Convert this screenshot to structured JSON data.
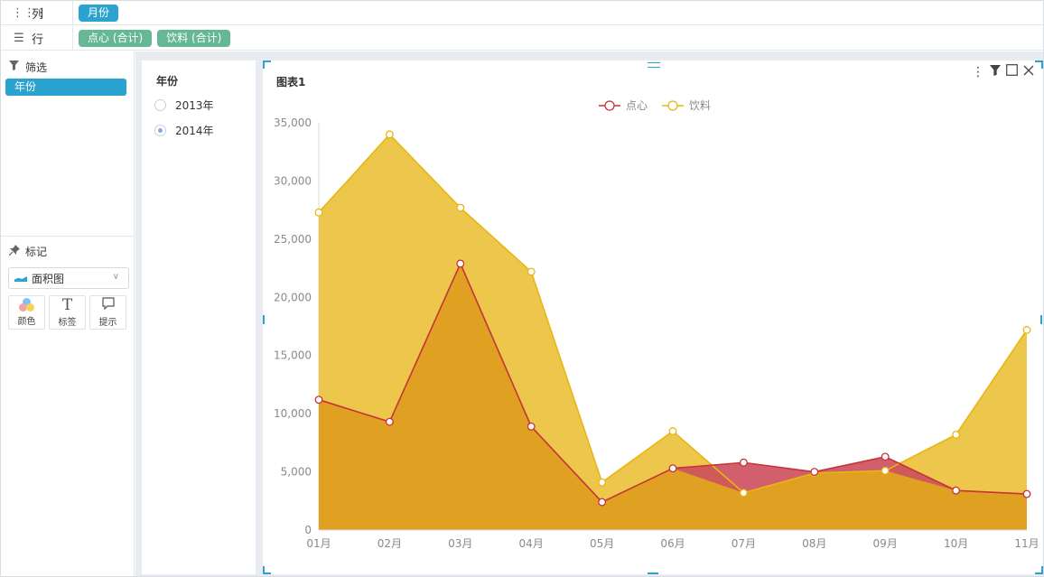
{
  "shelves": {
    "columns": {
      "label": "列",
      "icon": "columns-icon",
      "pills": [
        "月份"
      ]
    },
    "rows": {
      "label": "行",
      "icon": "list-icon",
      "pills": [
        "点心 (合计)",
        "饮料 (合计)"
      ]
    }
  },
  "left": {
    "filter_title": "筛选",
    "filter_pill": "年份",
    "marks_title": "标记",
    "mark_type": "面积图",
    "mark_buttons": [
      {
        "label": "颜色",
        "icon": "color-icon"
      },
      {
        "label": "标签",
        "icon": "text-T-icon"
      },
      {
        "label": "提示",
        "icon": "tooltip-icon"
      }
    ]
  },
  "year_filter": {
    "title": "年份",
    "options": [
      {
        "label": "2013年",
        "checked": false
      },
      {
        "label": "2014年",
        "checked": true
      }
    ]
  },
  "chart": {
    "title": "图表1",
    "colors": {
      "series1": "#c8323a",
      "series2": "#e8b612",
      "fill1": "#cc4e5c",
      "fill2": "#ebc441",
      "overlap": "#e0a021"
    }
  },
  "chart_data": {
    "type": "area",
    "categories": [
      "01月",
      "02月",
      "03月",
      "04月",
      "05月",
      "06月",
      "07月",
      "08月",
      "09月",
      "10月",
      "11月"
    ],
    "series": [
      {
        "name": "点心",
        "values": [
          11200,
          9300,
          22900,
          8900,
          2400,
          5300,
          5800,
          5000,
          6300,
          3400,
          3100
        ]
      },
      {
        "name": "饮料",
        "values": [
          27300,
          34000,
          27700,
          22200,
          4100,
          8500,
          3200,
          4900,
          5100,
          8200,
          17200
        ]
      }
    ],
    "ylim": [
      0,
      35000
    ],
    "yticks": [
      "0",
      "5,000",
      "10,000",
      "15,000",
      "20,000",
      "25,000",
      "30,000",
      "35,000"
    ],
    "xlabel": "",
    "ylabel": "",
    "legend": "top-center",
    "grid": false
  }
}
